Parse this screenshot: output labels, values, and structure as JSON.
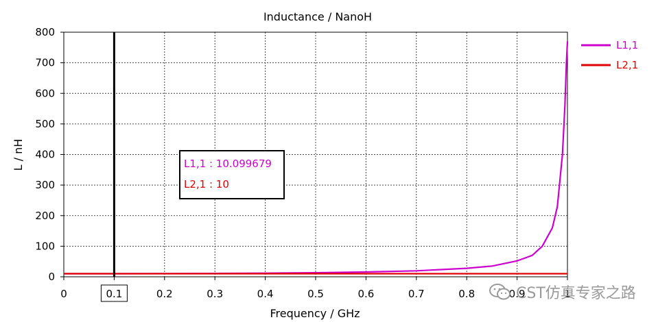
{
  "chart_data": {
    "type": "line",
    "title": "Inductance / NanoH",
    "xlabel": "Frequency / GHz",
    "ylabel": "L / nH",
    "xlim": [
      0,
      1
    ],
    "ylim": [
      0,
      800
    ],
    "x_ticks": [
      "0",
      "0.1",
      "0.2",
      "0.3",
      "0.4",
      "0.5",
      "0.6",
      "0.7",
      "0.8",
      "0.9",
      "1"
    ],
    "y_ticks": [
      "0",
      "100",
      "200",
      "300",
      "400",
      "500",
      "600",
      "700",
      "800"
    ],
    "grid": true,
    "legend_position": "right",
    "marker": {
      "x": 0.1,
      "x_label": "0.1"
    },
    "series": [
      {
        "name": "L1,1",
        "color": "#cc00cc",
        "x": [
          0,
          0.1,
          0.2,
          0.3,
          0.4,
          0.5,
          0.6,
          0.7,
          0.8,
          0.85,
          0.9,
          0.93,
          0.95,
          0.97,
          0.98,
          0.99,
          0.995,
          0.998,
          1.0
        ],
        "y": [
          10,
          10.1,
          10.4,
          11,
          11.9,
          13.3,
          15.6,
          19.6,
          27.8,
          35,
          52,
          70,
          100,
          160,
          230,
          400,
          560,
          700,
          770
        ]
      },
      {
        "name": "L2,1",
        "color": "#e00000",
        "x": [
          0,
          1
        ],
        "y": [
          10,
          10
        ]
      }
    ],
    "readout": [
      {
        "label": "L1,1 : 10.099679",
        "color": "#cc00cc"
      },
      {
        "label": "L2,1 : 10",
        "color": "#e00000"
      }
    ]
  },
  "watermark": {
    "text": "CST仿真专家之路",
    "icon": "wechat-icon"
  }
}
